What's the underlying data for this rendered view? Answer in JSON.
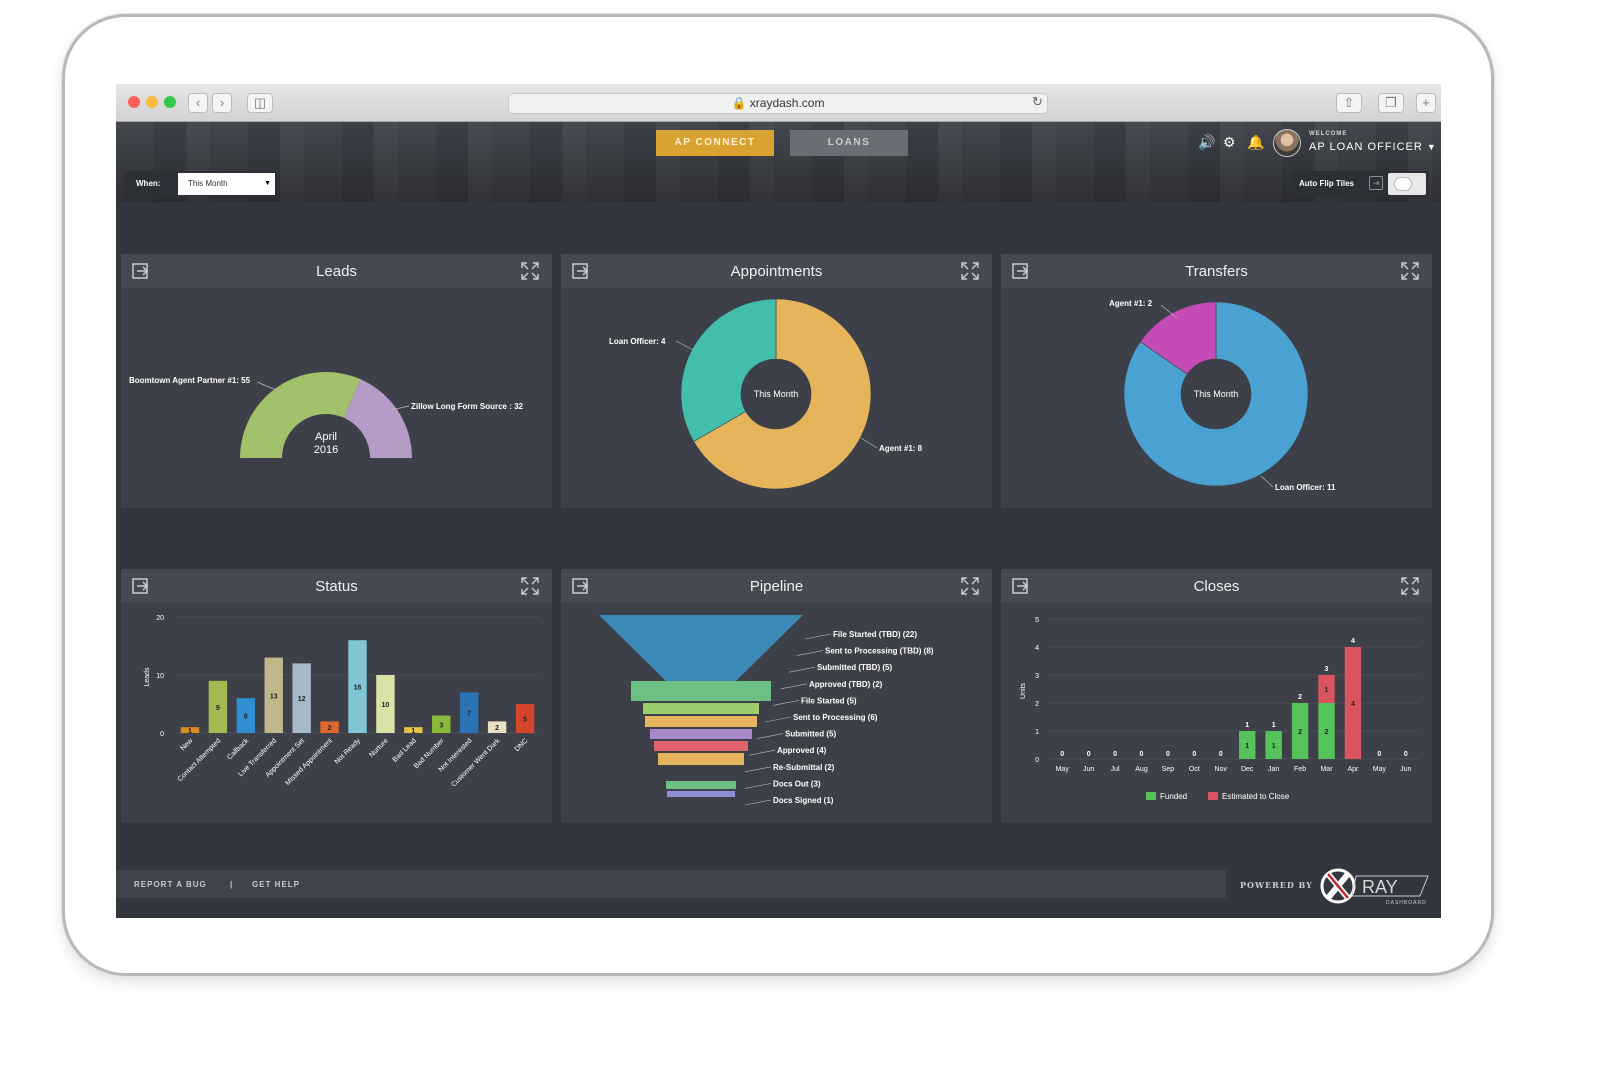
{
  "browser": {
    "url": "xraydash.com"
  },
  "header": {
    "tabs": [
      {
        "label": "AP CONNECT",
        "active": true
      },
      {
        "label": "LOANS",
        "active": false
      }
    ],
    "welcome": "WELCOME",
    "user_name": "AP LOAN OFFICER",
    "icons": [
      "volume-icon",
      "gear-icon",
      "bell-icon"
    ]
  },
  "toolbar": {
    "when_label": "When:",
    "when_value": "This Month",
    "auto_flip_label": "Auto Flip Tiles",
    "auto_flip_on": false
  },
  "panels": {
    "leads": {
      "title": "Leads"
    },
    "appointments": {
      "title": "Appointments"
    },
    "transfers": {
      "title": "Transfers"
    },
    "status": {
      "title": "Status"
    },
    "pipeline": {
      "title": "Pipeline"
    },
    "closes": {
      "title": "Closes"
    }
  },
  "footer": {
    "report_bug": "REPORT A BUG",
    "separator": "|",
    "get_help": "GET HELP",
    "powered_by": "POWERED BY",
    "logo_text": "RAY",
    "logo_sub": "DASHBOARD"
  },
  "colors": {
    "accent": "#d9a231",
    "green": "#a3c06a",
    "purple": "#b59cc6",
    "teal": "#42beaa",
    "orange": "#e5b45b",
    "blue": "#4aa2d2",
    "magenta": "#c54bb7",
    "funded": "#56c35a",
    "estimated": "#d9545f"
  },
  "chart_data": [
    {
      "id": "leads",
      "type": "pie",
      "subtype": "half-donut",
      "center_label": [
        "April",
        "2016"
      ],
      "slices": [
        {
          "label": "Boomtown Agent Partner #1: 55",
          "value": 55,
          "color": "#a3c06a"
        },
        {
          "label": "Zillow Long Form Source : 32",
          "value": 32,
          "color": "#b59cc6"
        }
      ]
    },
    {
      "id": "appointments",
      "type": "pie",
      "subtype": "donut",
      "center_label": "This Month",
      "slices": [
        {
          "label": "Agent #1: 8",
          "value": 8,
          "color": "#e5b45b"
        },
        {
          "label": "Loan Officer: 4",
          "value": 4,
          "color": "#42beaa"
        }
      ]
    },
    {
      "id": "transfers",
      "type": "pie",
      "subtype": "donut",
      "center_label": "This Month",
      "slices": [
        {
          "label": "Loan Officer: 11",
          "value": 11,
          "color": "#4aa2d2"
        },
        {
          "label": "Agent #1: 2",
          "value": 2,
          "color": "#c54bb7"
        }
      ]
    },
    {
      "id": "status",
      "type": "bar",
      "ylabel": "Leads",
      "ylim": [
        0,
        20
      ],
      "yticks": [
        0,
        10,
        20
      ],
      "categories": [
        "New",
        "Contact Attempted",
        "Callback",
        "Live Transferred",
        "Appointment Set",
        "Missed Appointment",
        "Not Ready",
        "Nurture",
        "Bad Lead",
        "Bad Number",
        "Not Interested",
        "Customer Went Dark",
        "DNC"
      ],
      "values": [
        1,
        9,
        6,
        13,
        12,
        2,
        16,
        10,
        1,
        3,
        7,
        2,
        5
      ],
      "colors": [
        "#d98e1c",
        "#a1ba52",
        "#2f8fd1",
        "#bfb68a",
        "#a7b8c9",
        "#e0682e",
        "#7fc5d6",
        "#d9e4a5",
        "#e8c447",
        "#8bb93a",
        "#2c73b5",
        "#e9dfc3",
        "#d6452b"
      ]
    },
    {
      "id": "pipeline",
      "type": "funnel",
      "stages": [
        {
          "label": "File Started (TBD) (22)",
          "value": 22,
          "color": "#3d8ab9"
        },
        {
          "label": "Sent to Processing (TBD) (8)",
          "value": 8,
          "color": "#3d8ab9"
        },
        {
          "label": "Submitted (TBD) (5)",
          "value": 5,
          "color": "#3d8ab9"
        },
        {
          "label": "Approved (TBD) (2)",
          "value": 2,
          "color": "#6cc084"
        },
        {
          "label": "File Started (5)",
          "value": 5,
          "color": "#9ccc6b"
        },
        {
          "label": "Sent to Processing (6)",
          "value": 6,
          "color": "#e8b55f"
        },
        {
          "label": "Submitted (5)",
          "value": 5,
          "color": "#a889c9"
        },
        {
          "label": "Approved (4)",
          "value": 4,
          "color": "#e0636b"
        },
        {
          "label": "Re-Submittal (2)",
          "value": 2,
          "color": "#e8b55f"
        },
        {
          "label": "Docs Out (3)",
          "value": 3,
          "color": "#6cc084"
        },
        {
          "label": "Docs Signed (1)",
          "value": 1,
          "color": "#8e8fd6"
        }
      ]
    },
    {
      "id": "closes",
      "type": "bar",
      "stacked": true,
      "ylabel": "Units",
      "ylim": [
        0,
        5
      ],
      "yticks": [
        0,
        1,
        2,
        3,
        4,
        5
      ],
      "categories": [
        "May",
        "Jun",
        "Jul",
        "Aug",
        "Sep",
        "Oct",
        "Nov",
        "Dec",
        "Jan",
        "Feb",
        "Mar",
        "Apr",
        "May",
        "Jun"
      ],
      "series": [
        {
          "name": "Funded",
          "color": "#56c35a",
          "values": [
            0,
            0,
            0,
            0,
            0,
            0,
            0,
            1,
            1,
            2,
            2,
            0,
            0,
            0
          ]
        },
        {
          "name": "Estimated to Close",
          "color": "#d9545f",
          "values": [
            0,
            0,
            0,
            0,
            0,
            0,
            0,
            0,
            0,
            0,
            1,
            4,
            0,
            0
          ]
        }
      ],
      "totals": [
        0,
        0,
        0,
        0,
        0,
        0,
        0,
        1,
        1,
        2,
        3,
        4,
        0,
        0
      ],
      "legend": "bottom"
    }
  ]
}
